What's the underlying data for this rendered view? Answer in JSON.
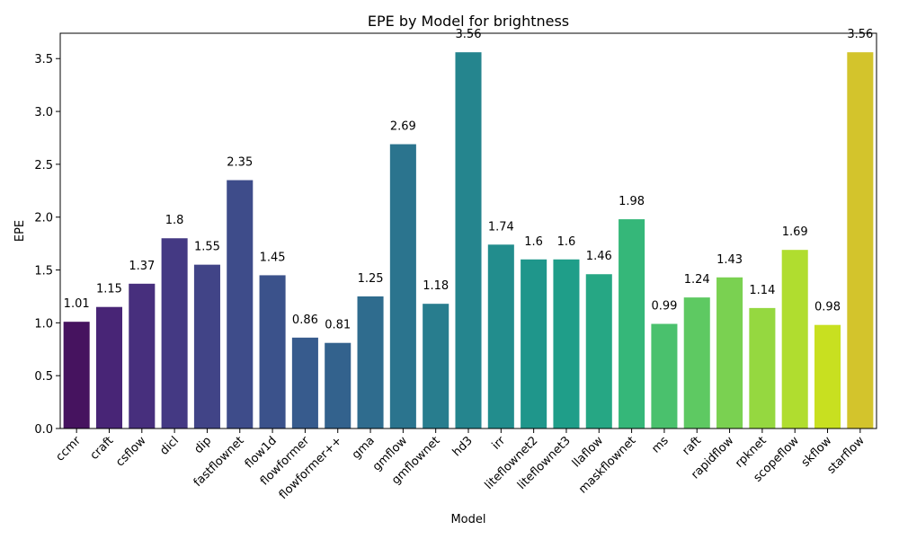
{
  "chart_data": {
    "type": "bar",
    "title": "EPE by Model for brightness",
    "xlabel": "Model",
    "ylabel": "EPE",
    "ylim": [
      0,
      3.74
    ],
    "yticks": [
      "0.0",
      "0.5",
      "1.0",
      "1.5",
      "2.0",
      "2.5",
      "3.0",
      "3.5"
    ],
    "grid": false,
    "palette": "viridis",
    "categories": [
      "ccmr",
      "craft",
      "csflow",
      "dicl",
      "dip",
      "fastflownet",
      "flow1d",
      "flowformer",
      "flowformer++",
      "gma",
      "gmflow",
      "gmflownet",
      "hd3",
      "irr",
      "liteflownet2",
      "liteflownet3",
      "llaflow",
      "maskflownet",
      "ms",
      "raft",
      "rapidflow",
      "rpknet",
      "scopeflow",
      "skflow",
      "starflow"
    ],
    "values": [
      1.01,
      1.15,
      1.37,
      1.8,
      1.55,
      2.35,
      1.45,
      0.86,
      0.81,
      1.25,
      2.69,
      1.18,
      3.56,
      1.74,
      1.6,
      1.6,
      1.46,
      1.98,
      0.99,
      1.24,
      1.43,
      1.14,
      1.69,
      0.98,
      3.56
    ],
    "value_labels": [
      "1.01",
      "1.15",
      "1.37",
      "1.8",
      "1.55",
      "2.35",
      "1.45",
      "0.86",
      "0.81",
      "1.25",
      "2.69",
      "1.18",
      "3.56",
      "1.74",
      "1.6",
      "1.6",
      "1.46",
      "1.98",
      "0.99",
      "1.24",
      "1.43",
      "1.14",
      "1.69",
      "0.98",
      "3.56"
    ],
    "colors": [
      "#46135f",
      "#482576",
      "#472f7d",
      "#443983",
      "#414487",
      "#3e4c8a",
      "#3b528b",
      "#375b8d",
      "#33628d",
      "#2f6c8e",
      "#2b748e",
      "#287d8e",
      "#25858e",
      "#228d8d",
      "#1f968b",
      "#1f9e89",
      "#26a784",
      "#35b779",
      "#4ac16d",
      "#5ec962",
      "#7ad151",
      "#95d840",
      "#b0dd2f",
      "#c8e020",
      "#d3c42c"
    ]
  }
}
